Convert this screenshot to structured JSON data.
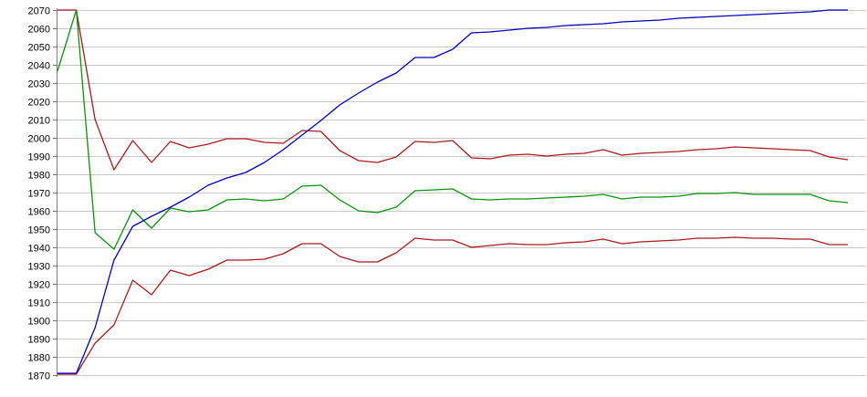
{
  "chart_data": {
    "type": "line",
    "title": "",
    "subtitle": "",
    "legend": "none",
    "grid": "horizontal",
    "x_axis": {
      "labels_visible": false,
      "tick_labels": [],
      "num_points": 43
    },
    "y_axis": {
      "min": 1870,
      "max": 2070,
      "step": 10,
      "tick_labels": [
        "2070",
        "2060",
        "2050",
        "2040",
        "2030",
        "2020",
        "2010",
        "2000",
        "1990",
        "1980",
        "1970",
        "1960",
        "1950",
        "1940",
        "1930",
        "1920",
        "1910",
        "1900",
        "1890",
        "1880",
        "1870"
      ]
    },
    "colors": {
      "background": "#ffffff",
      "gridline": "#c8c8c8",
      "axis": "#808080",
      "tick": "#707070",
      "label": "#000000",
      "blue": "#0000c0",
      "dark_red": "#aa1b1b",
      "green": "#0a930a"
    },
    "series": [
      {
        "name": "dark-red-upper-line",
        "color": "#aa1b1b",
        "values": [
          2070,
          2070,
          2010,
          1982.5,
          1998.5,
          1986.5,
          1998,
          1994.5,
          1996.5,
          1999.5,
          1999.5,
          1997.5,
          1997,
          2004,
          2003.5,
          1993,
          1987.5,
          1986.5,
          1989.5,
          1998,
          1997.5,
          1998.5,
          1989,
          1988.5,
          1990.5,
          1991,
          1990,
          1991,
          1991.5,
          1993.5,
          1990.5,
          1991.5,
          1992,
          1992.5,
          1993.5,
          1994,
          1995,
          1994.5,
          1994,
          1993.5,
          1993,
          1989.5,
          1988
        ]
      },
      {
        "name": "green-line",
        "color": "#0a930a",
        "values": [
          2036.5,
          2070,
          1948,
          1939,
          1960.5,
          1950.5,
          1961.5,
          1959.5,
          1960.5,
          1966,
          1966.5,
          1965.5,
          1966.5,
          1973.5,
          1974,
          1966,
          1960,
          1959,
          1962,
          1971,
          1971.5,
          1972,
          1966.5,
          1966,
          1966.5,
          1966.5,
          1967,
          1967.5,
          1968,
          1969,
          1966.5,
          1967.5,
          1967.5,
          1968,
          1969.5,
          1969.5,
          1970,
          1969,
          1969,
          1969,
          1969,
          1965.5,
          1964.5
        ]
      },
      {
        "name": "dark-red-lower-line",
        "color": "#aa1b1b",
        "values": [
          1870.5,
          1870.5,
          1887.5,
          1897.5,
          1922,
          1914,
          1927.5,
          1924.5,
          1928,
          1933,
          1933,
          1933.5,
          1936.5,
          1942,
          1942,
          1935,
          1932,
          1932,
          1937,
          1945,
          1944,
          1944,
          1940,
          1941,
          1942,
          1941.5,
          1941.5,
          1942.5,
          1943,
          1944.5,
          1942,
          1943,
          1943.5,
          1944,
          1945,
          1945,
          1945.5,
          1945,
          1945,
          1944.5,
          1944.5,
          1941.5,
          1941.5
        ]
      },
      {
        "name": "blue-line",
        "color": "#0000c0",
        "values": [
          1871,
          1871,
          1896,
          1933,
          1951.5,
          1957,
          1962,
          1967.5,
          1974,
          1978,
          1981,
          1986.5,
          1993.5,
          2001.5,
          2009.5,
          2018,
          2024.5,
          2030.5,
          2035.5,
          2044,
          2044,
          2048.5,
          2057.5,
          2058,
          2059,
          2060,
          2060.5,
          2061.5,
          2062,
          2062.5,
          2063.5,
          2064,
          2064.5,
          2065.5,
          2066,
          2066.5,
          2067,
          2067.5,
          2068,
          2068.5,
          2069,
          2070,
          2070
        ]
      }
    ]
  }
}
